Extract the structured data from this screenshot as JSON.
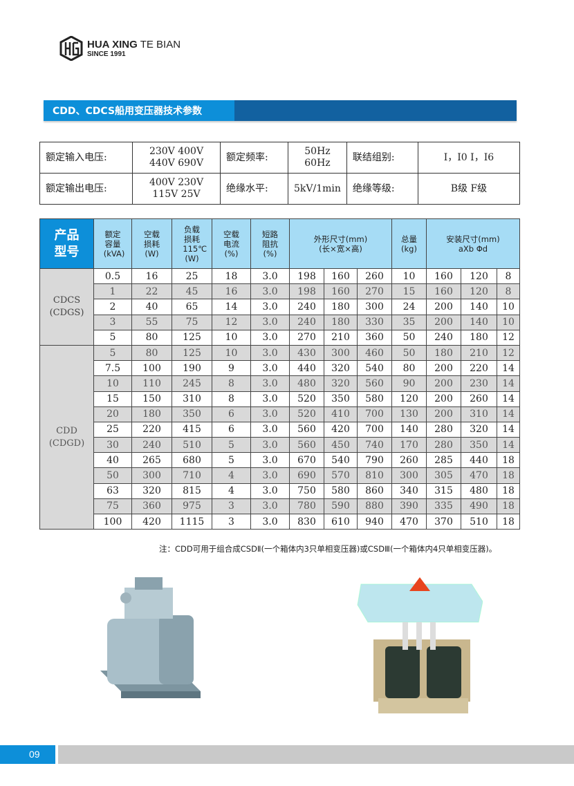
{
  "logo": {
    "brand_bold": "HUA XING",
    "brand_light": "TE BIAN",
    "since": "SINCE 1991",
    "registered": "®"
  },
  "title": "CDD、CDCS船用变压器技术参数",
  "spec": {
    "rows": [
      [
        {
          "label": "额定输入电压:"
        },
        {
          "value1": "230V 400V",
          "value2": "440V 690V"
        },
        {
          "label": "额定频率:"
        },
        {
          "value": "50Hz 60Hz"
        },
        {
          "label": "联结组别:"
        },
        {
          "value": "I，I0  I，I6"
        }
      ],
      [
        {
          "label": "额定输出电压:"
        },
        {
          "value1": "400V 230V",
          "value2": "115V 25V"
        },
        {
          "label": "绝缘水平:"
        },
        {
          "value": "5kV/1min"
        },
        {
          "label": "绝缘等级:"
        },
        {
          "value": "B级  F级"
        }
      ]
    ]
  },
  "table": {
    "headers": {
      "model": "产品型号",
      "capacity": "额定容量(kVA)",
      "noload_loss": "空载损耗(W)",
      "load_loss": "负载损耗115℃(W)",
      "noload_current": "空载电流(%)",
      "impedance": "短路阻抗(%)",
      "dims": "外形尺寸(mm)(长×宽×高)",
      "weight": "总量(kg)",
      "mount": "安装尺寸(mm) aXb  Φd"
    },
    "groups": [
      {
        "name": "CDCS",
        "alt": "(CDGS)",
        "rows": [
          [
            "0.5",
            "16",
            "25",
            "18",
            "3.0",
            "198",
            "160",
            "260",
            "10",
            "160",
            "120",
            "8"
          ],
          [
            "1",
            "22",
            "45",
            "16",
            "3.0",
            "198",
            "160",
            "270",
            "15",
            "160",
            "120",
            "8"
          ],
          [
            "2",
            "40",
            "65",
            "14",
            "3.0",
            "240",
            "180",
            "300",
            "24",
            "200",
            "140",
            "10"
          ],
          [
            "3",
            "55",
            "75",
            "12",
            "3.0",
            "240",
            "180",
            "330",
            "35",
            "200",
            "140",
            "10"
          ],
          [
            "5",
            "80",
            "125",
            "10",
            "3.0",
            "270",
            "210",
            "360",
            "50",
            "240",
            "180",
            "12"
          ]
        ]
      },
      {
        "name": "CDD",
        "alt": "(CDGD)",
        "rows": [
          [
            "5",
            "80",
            "125",
            "10",
            "3.0",
            "430",
            "300",
            "460",
            "50",
            "180",
            "210",
            "12"
          ],
          [
            "7.5",
            "100",
            "190",
            "9",
            "3.0",
            "440",
            "320",
            "540",
            "80",
            "200",
            "220",
            "14"
          ],
          [
            "10",
            "110",
            "245",
            "8",
            "3.0",
            "480",
            "320",
            "560",
            "90",
            "200",
            "230",
            "14"
          ],
          [
            "15",
            "150",
            "310",
            "8",
            "3.0",
            "520",
            "350",
            "580",
            "120",
            "200",
            "260",
            "14"
          ],
          [
            "20",
            "180",
            "350",
            "6",
            "3.0",
            "520",
            "410",
            "700",
            "130",
            "200",
            "310",
            "14"
          ],
          [
            "25",
            "220",
            "415",
            "6",
            "3.0",
            "560",
            "420",
            "700",
            "140",
            "280",
            "320",
            "14"
          ],
          [
            "30",
            "240",
            "510",
            "5",
            "3.0",
            "560",
            "450",
            "740",
            "170",
            "280",
            "350",
            "14"
          ],
          [
            "40",
            "265",
            "680",
            "5",
            "3.0",
            "670",
            "540",
            "790",
            "260",
            "285",
            "440",
            "18"
          ],
          [
            "50",
            "300",
            "710",
            "4",
            "3.0",
            "690",
            "570",
            "810",
            "300",
            "305",
            "470",
            "18"
          ],
          [
            "63",
            "320",
            "815",
            "4",
            "3.0",
            "750",
            "580",
            "860",
            "340",
            "315",
            "480",
            "18"
          ],
          [
            "75",
            "360",
            "975",
            "3",
            "3.0",
            "780",
            "590",
            "880",
            "390",
            "335",
            "490",
            "18"
          ],
          [
            "100",
            "420",
            "1115",
            "3",
            "3.0",
            "830",
            "610",
            "940",
            "470",
            "370",
            "510",
            "18"
          ]
        ]
      }
    ]
  },
  "note": "注：CDD可用于组合成CSDⅡ(一个箱体内3只单相变压器)或CSDⅢ(一个箱体内4只单相变压器)。",
  "footer": {
    "page": "09"
  },
  "colors": {
    "accent": "#0d8fd9",
    "dark_accent": "#1261a0",
    "header_bg": "#a6dcf5",
    "row_gray": "#d9d9d9"
  }
}
